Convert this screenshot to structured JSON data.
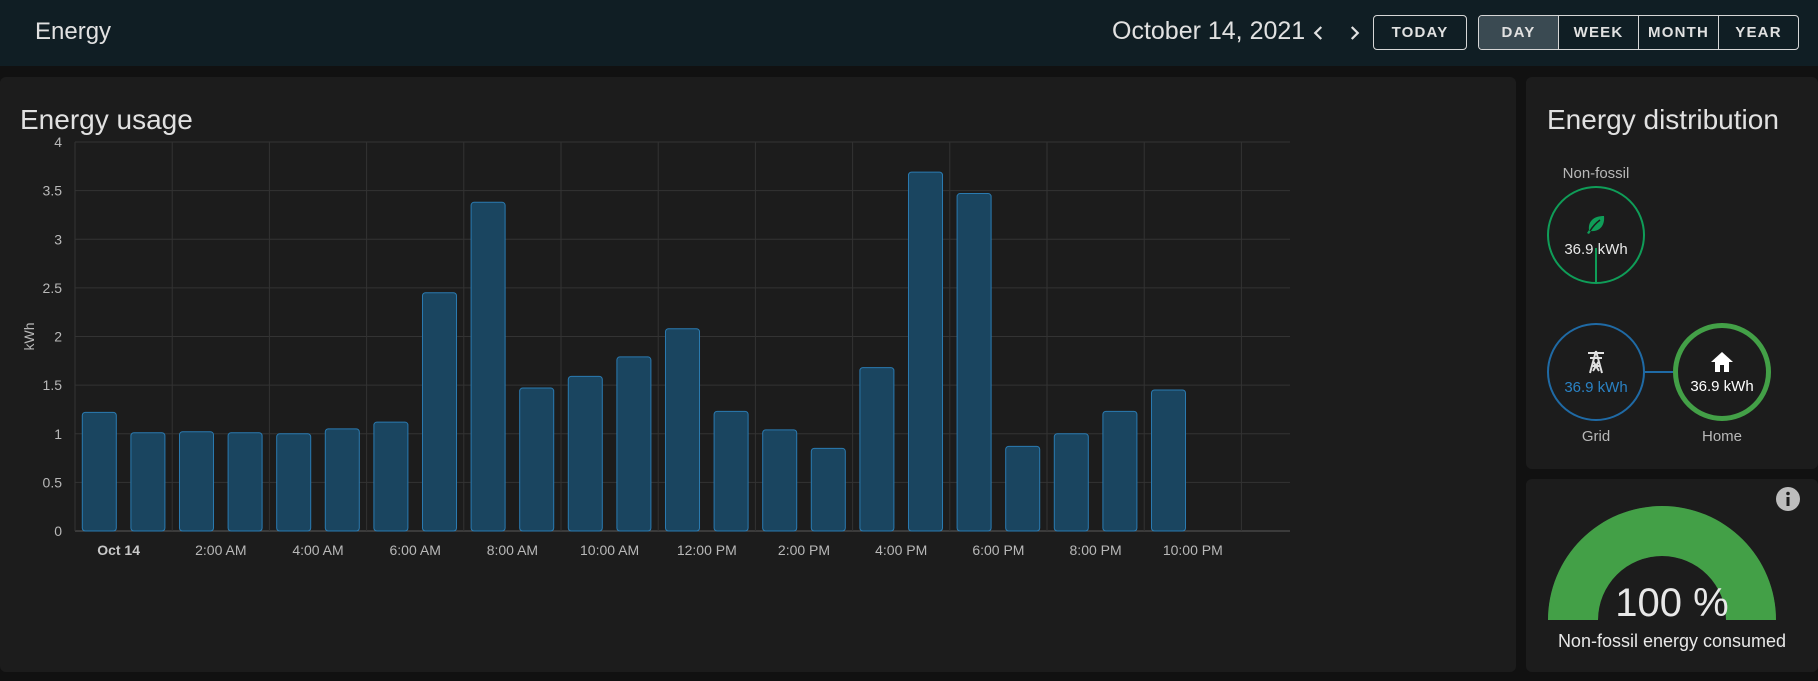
{
  "header": {
    "title": "Energy",
    "date": "October 14, 2021",
    "today_label": "TODAY",
    "periods": [
      "DAY",
      "WEEK",
      "MONTH",
      "YEAR"
    ],
    "active_period": "DAY"
  },
  "usage": {
    "title": "Energy usage"
  },
  "chart_data": {
    "type": "bar",
    "title": "Energy usage",
    "ylabel": "kWh",
    "xlabel": "",
    "ylim": [
      0,
      4
    ],
    "yticks": [
      "0",
      "0.5",
      "1",
      "1.5",
      "2",
      "2.5",
      "3",
      "3.5",
      "4"
    ],
    "xtick_labels": [
      "Oct 14",
      "2:00 AM",
      "4:00 AM",
      "6:00 AM",
      "8:00 AM",
      "10:00 AM",
      "12:00 PM",
      "2:00 PM",
      "4:00 PM",
      "6:00 PM",
      "8:00 PM",
      "10:00 PM"
    ],
    "categories": [
      "12 AM",
      "1 AM",
      "2 AM",
      "3 AM",
      "4 AM",
      "5 AM",
      "6 AM",
      "7 AM",
      "8 AM",
      "9 AM",
      "10 AM",
      "11 AM",
      "12 PM",
      "1 PM",
      "2 PM",
      "3 PM",
      "4 PM",
      "5 PM",
      "6 PM",
      "7 PM",
      "8 PM",
      "9 PM",
      "10 PM",
      "11 PM"
    ],
    "values": [
      1.22,
      1.01,
      1.02,
      1.01,
      1.0,
      1.05,
      1.12,
      2.45,
      3.38,
      1.47,
      1.59,
      1.79,
      2.08,
      1.23,
      1.04,
      0.85,
      1.68,
      3.69,
      3.47,
      0.87,
      1.0,
      1.23,
      1.45,
      null
    ],
    "grid": true,
    "bar_color": "#1a4560",
    "bar_border": "#2a7ab0"
  },
  "distribution": {
    "title": "Energy distribution",
    "non_fossil": {
      "label": "Non-fossil",
      "value": "36.9 kWh",
      "color": "#0f9d58",
      "icon": "leaf-icon"
    },
    "grid": {
      "label": "Grid",
      "value": "36.9 kWh",
      "color": "#1f6aa5",
      "icon": "transmission-tower-icon"
    },
    "home": {
      "label": "Home",
      "value": "36.9 kWh",
      "color": "#43a047",
      "icon": "home-icon"
    }
  },
  "gauge": {
    "value": "100 %",
    "fraction": 1.0,
    "label": "Non-fossil energy consumed",
    "color": "#43a047",
    "icon": "info-icon"
  }
}
